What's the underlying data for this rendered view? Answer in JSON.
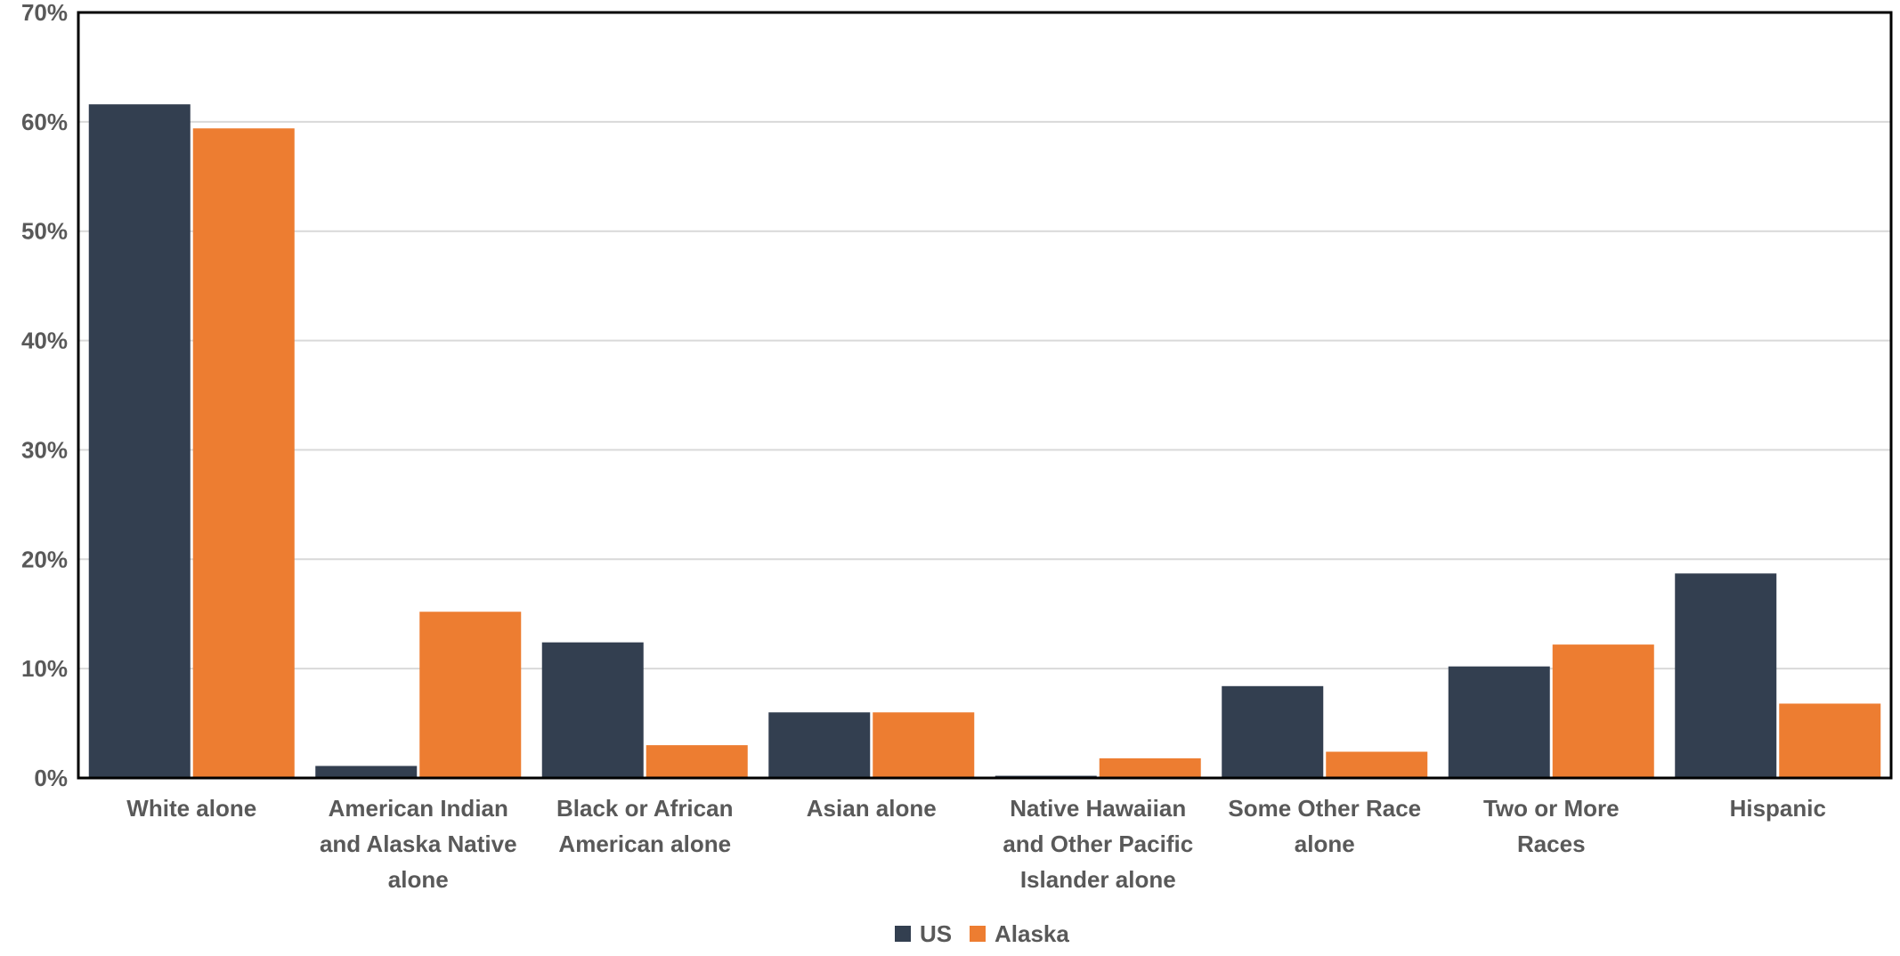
{
  "chart_data": {
    "type": "bar",
    "title": "",
    "xlabel": "",
    "ylabel": "",
    "categories": [
      "White alone",
      "American Indian and Alaska Native alone",
      "Black or African American alone",
      "Asian alone",
      "Native Hawaiian and Other Pacific Islander alone",
      "Some Other Race alone",
      "Two or More Races",
      "Hispanic"
    ],
    "category_lines": [
      [
        "White alone"
      ],
      [
        "American Indian",
        "and Alaska Native",
        "alone"
      ],
      [
        "Black or African",
        "American alone"
      ],
      [
        "Asian alone"
      ],
      [
        "Native Hawaiian",
        "and Other Pacific",
        "Islander alone"
      ],
      [
        "Some Other Race",
        "alone"
      ],
      [
        "Two or More",
        "Races"
      ],
      [
        "Hispanic"
      ]
    ],
    "series": [
      {
        "name": "US",
        "color": "#333f50",
        "values": [
          61.6,
          1.1,
          12.4,
          6.0,
          0.2,
          8.4,
          10.2,
          18.7
        ]
      },
      {
        "name": "Alaska",
        "color": "#ed7d31",
        "values": [
          59.4,
          15.2,
          3.0,
          6.0,
          1.8,
          2.4,
          12.2,
          6.8
        ]
      }
    ],
    "ylim": [
      0,
      70
    ],
    "yticks": [
      0,
      10,
      20,
      30,
      40,
      50,
      60,
      70
    ],
    "ytick_labels": [
      "0%",
      "10%",
      "20%",
      "30%",
      "40%",
      "50%",
      "60%",
      "70%"
    ],
    "grid": true,
    "legend": "bottom-center"
  }
}
